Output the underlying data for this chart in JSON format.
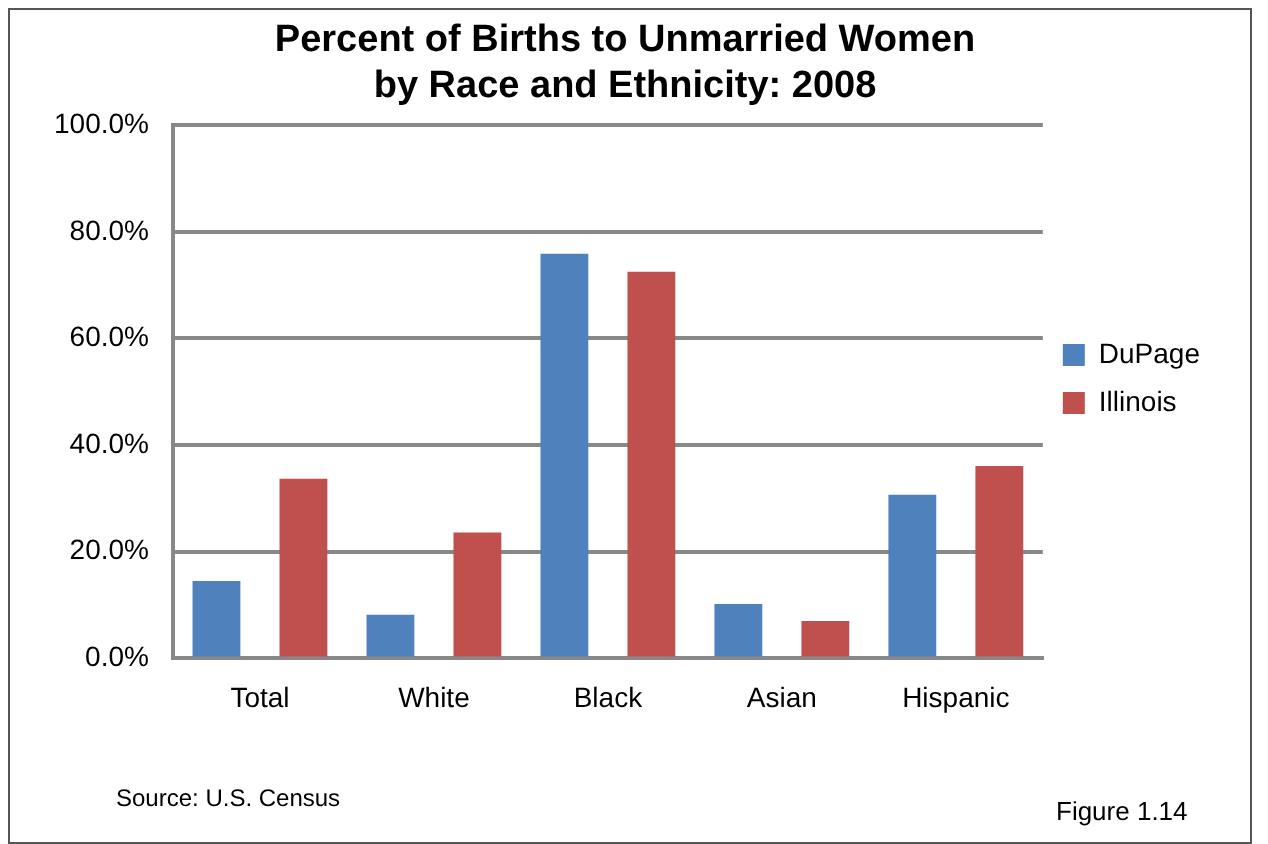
{
  "chart_data": {
    "type": "bar",
    "title": "Percent of Births to Unmarried Women\nby Race and Ethnicity: 2008",
    "categories": [
      "Total",
      "White",
      "Black",
      "Asian",
      "Hispanic"
    ],
    "series": [
      {
        "name": "DuPage",
        "color": "#4f81bd",
        "values": [
          14.5,
          8.2,
          75.9,
          10.2,
          30.7
        ]
      },
      {
        "name": "Illinois",
        "color": "#c0504d",
        "values": [
          33.7,
          23.6,
          72.5,
          7.0,
          36.1
        ]
      }
    ],
    "ylim": [
      0,
      100
    ],
    "yticks": [
      {
        "value": 0,
        "label": "0.0%"
      },
      {
        "value": 20,
        "label": "20.0%"
      },
      {
        "value": 40,
        "label": "40.0%"
      },
      {
        "value": 60,
        "label": "60.0%"
      },
      {
        "value": 80,
        "label": "80.0%"
      },
      {
        "value": 100,
        "label": "100.0%"
      }
    ],
    "grid": "y",
    "legend": "right",
    "annotations": [
      "Source:  U.S. Census",
      "Figure 1.14"
    ]
  }
}
